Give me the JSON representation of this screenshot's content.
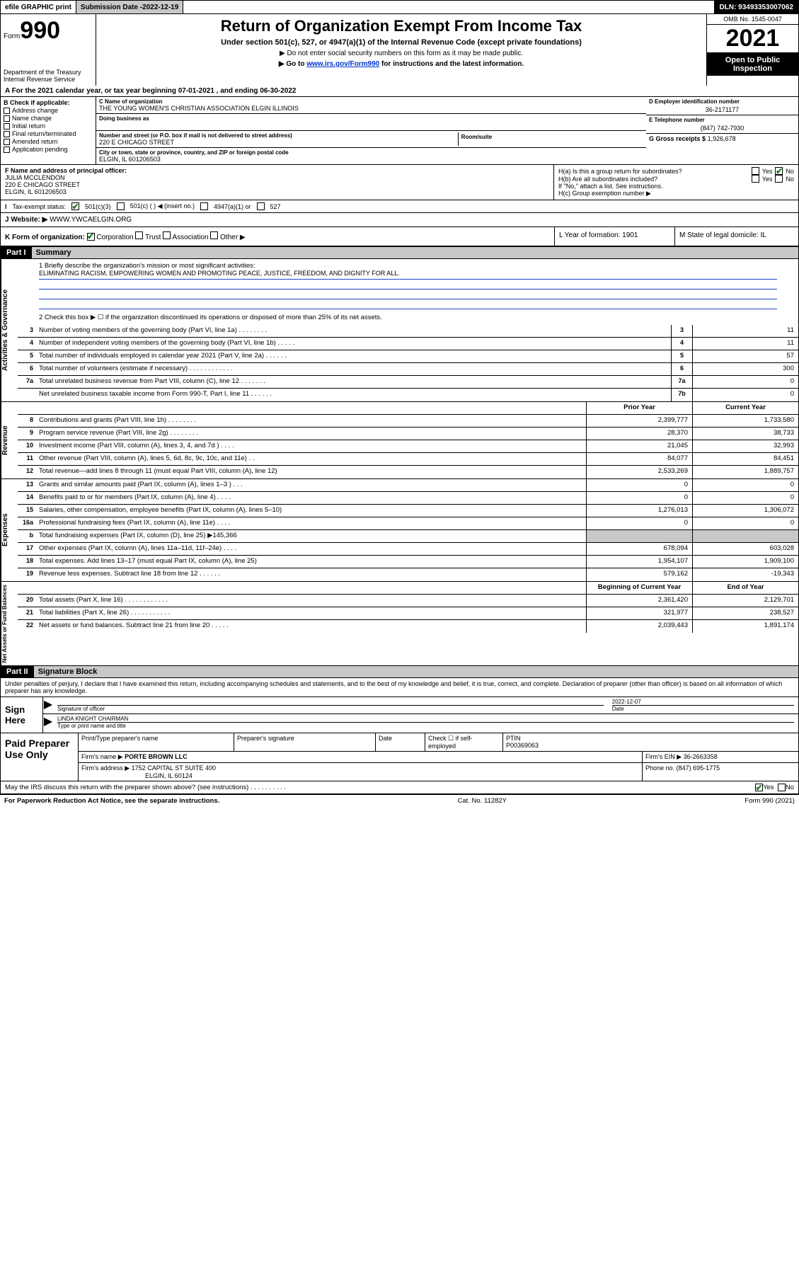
{
  "topbar": {
    "efile": "efile GRAPHIC print",
    "sub_label": "Submission Date - ",
    "sub_date": "2022-12-19",
    "dln": "DLN: 93493353007062"
  },
  "header": {
    "form": "Form",
    "form_num": "990",
    "title": "Return of Organization Exempt From Income Tax",
    "sub": "Under section 501(c), 527, or 4947(a)(1) of the Internal Revenue Code (except private foundations)",
    "note1": "▶ Do not enter social security numbers on this form as it may be made public.",
    "note2_a": "▶ Go to ",
    "note2_link": "www.irs.gov/Form990",
    "note2_b": " for instructions and the latest information.",
    "dept": "Department of the Treasury\nInternal Revenue Service",
    "omb": "OMB No. 1545-0047",
    "year": "2021",
    "open": "Open to Public Inspection"
  },
  "rowA": "A For the 2021 calendar year, or tax year beginning 07-01-2021   , and ending 06-30-2022",
  "colB": {
    "label": "B Check if applicable:",
    "items": [
      "Address change",
      "Name change",
      "Initial return",
      "Final return/terminated",
      "Amended return",
      "Application pending"
    ]
  },
  "colC": {
    "name_label": "C Name of organization",
    "name": "THE YOUNG WOMEN'S CHRISTIAN ASSOCIATION ELGIN ILLINOIS",
    "dba_label": "Doing business as",
    "addr_label": "Number and street (or P.O. box if mail is not delivered to street address)",
    "addr": "220 E CHICAGO STREET",
    "room_label": "Room/suite",
    "city_label": "City or town, state or province, country, and ZIP or foreign postal code",
    "city": "ELGIN, IL  601206503"
  },
  "colDE": {
    "d_label": "D Employer identification number",
    "ein": "36-2171177",
    "e_label": "E Telephone number",
    "phone": "(847) 742-7930",
    "g_label": "G Gross receipts $",
    "gross": "1,926,678"
  },
  "rowF": {
    "label": "F Name and address of principal officer:",
    "name": "JULIA MCCLENDON",
    "addr1": "220 E CHICAGO STREET",
    "addr2": "ELGIN, IL  601206503",
    "ha": "H(a)  Is this a group return for subordinates?",
    "hb": "H(b)  Are all subordinates included?",
    "hnote": "If \"No,\" attach a list. See instructions.",
    "hc": "H(c)  Group exemption number ▶",
    "yes": "Yes",
    "no": "No"
  },
  "rowI": {
    "label": "Tax-exempt status:",
    "opts": [
      "501(c)(3)",
      "501(c) (  ) ◀ (insert no.)",
      "4947(a)(1) or",
      "527"
    ]
  },
  "rowJ": {
    "label": "Website: ▶",
    "val": "WWW.YWCAELGIN.ORG"
  },
  "rowK": {
    "label": "K Form of organization:",
    "opts": [
      "Corporation",
      "Trust",
      "Association",
      "Other ▶"
    ],
    "l": "L Year of formation: 1901",
    "m": "M State of legal domicile: IL"
  },
  "part1": {
    "hdr": "Part I",
    "title": "Summary"
  },
  "mission": {
    "q": "1  Briefly describe the organization's mission or most significant activities:",
    "text": "ELIMINATING RACISM, EMPOWERING WOMEN AND PROMOTING PEACE, JUSTICE, FREEDOM, AND DIGNITY FOR ALL."
  },
  "line2": "2   Check this box ▶ ☐  if the organization discontinued its operations or disposed of more than 25% of its net assets.",
  "gov_rows": [
    {
      "n": "3",
      "t": "Number of voting members of the governing body (Part VI, line 1a)  .   .   .   .   .   .   .   .",
      "c": "3",
      "v": "11"
    },
    {
      "n": "4",
      "t": "Number of independent voting members of the governing body (Part VI, line 1b)  .   .   .   .   .",
      "c": "4",
      "v": "11"
    },
    {
      "n": "5",
      "t": "Total number of individuals employed in calendar year 2021 (Part V, line 2a)  .   .   .   .   .   .",
      "c": "5",
      "v": "57"
    },
    {
      "n": "6",
      "t": "Total number of volunteers (estimate if necessary)  .   .   .   .   .   .   .   .   .   .   .   .",
      "c": "6",
      "v": "300"
    },
    {
      "n": "7a",
      "t": "Total unrelated business revenue from Part VIII, column (C), line 12  .   .   .   .   .   .   .",
      "c": "7a",
      "v": "0"
    },
    {
      "n": "",
      "t": "Net unrelated business taxable income from Form 990-T, Part I, line 11  .   .   .   .   .   .",
      "c": "7b",
      "v": "0"
    }
  ],
  "col_hdrs": {
    "prior": "Prior Year",
    "current": "Current Year"
  },
  "rev_rows": [
    {
      "n": "8",
      "t": "Contributions and grants (Part VIII, line 1h)   .   .   .   .   .   .   .   .",
      "p": "2,399,777",
      "c": "1,733,580"
    },
    {
      "n": "9",
      "t": "Program service revenue (Part VIII, line 2g)   .   .   .   .   .   .   .   .",
      "p": "28,370",
      "c": "38,733"
    },
    {
      "n": "10",
      "t": "Investment income (Part VIII, column (A), lines 3, 4, and 7d )   .   .   .   .",
      "p": "21,045",
      "c": "32,993"
    },
    {
      "n": "11",
      "t": "Other revenue (Part VIII, column (A), lines 5, 6d, 8c, 9c, 10c, and 11e)   .   .",
      "p": "84,077",
      "c": "84,451"
    },
    {
      "n": "12",
      "t": "Total revenue—add lines 8 through 11 (must equal Part VIII, column (A), line 12)",
      "p": "2,533,269",
      "c": "1,889,757"
    }
  ],
  "exp_rows": [
    {
      "n": "13",
      "t": "Grants and similar amounts paid (Part IX, column (A), lines 1–3 )   .   .   .",
      "p": "0",
      "c": "0"
    },
    {
      "n": "14",
      "t": "Benefits paid to or for members (Part IX, column (A), line 4)   .   .   .   .",
      "p": "0",
      "c": "0"
    },
    {
      "n": "15",
      "t": "Salaries, other compensation, employee benefits (Part IX, column (A), lines 5–10)",
      "p": "1,276,013",
      "c": "1,306,072"
    },
    {
      "n": "16a",
      "t": "Professional fundraising fees (Part IX, column (A), line 11e)   .   .   .   .",
      "p": "0",
      "c": "0"
    },
    {
      "n": "b",
      "t": "Total fundraising expenses (Part IX, column (D), line 25) ▶145,366",
      "p": "grey",
      "c": "grey"
    },
    {
      "n": "17",
      "t": "Other expenses (Part IX, column (A), lines 11a–11d, 11f–24e)   .   .   .   .",
      "p": "678,094",
      "c": "603,028"
    },
    {
      "n": "18",
      "t": "Total expenses. Add lines 13–17 (must equal Part IX, column (A), line 25)",
      "p": "1,954,107",
      "c": "1,909,100"
    },
    {
      "n": "19",
      "t": "Revenue less expenses. Subtract line 18 from line 12   .   .   .   .   .   .",
      "p": "579,162",
      "c": "-19,343"
    }
  ],
  "net_hdrs": {
    "begin": "Beginning of Current Year",
    "end": "End of Year"
  },
  "net_rows": [
    {
      "n": "20",
      "t": "Total assets (Part X, line 16)   .   .   .   .   .   .   .   .   .   .   .   .",
      "p": "2,361,420",
      "c": "2,129,701"
    },
    {
      "n": "21",
      "t": "Total liabilities (Part X, line 26)   .   .   .   .   .   .   .   .   .   .   .",
      "p": "321,977",
      "c": "238,527"
    },
    {
      "n": "22",
      "t": "Net assets or fund balances. Subtract line 21 from line 20   .   .   .   .   .",
      "p": "2,039,443",
      "c": "1,891,174"
    }
  ],
  "part2": {
    "hdr": "Part II",
    "title": "Signature Block"
  },
  "sig": {
    "intro": "Under penalties of perjury, I declare that I have examined this return, including accompanying schedules and statements, and to the best of my knowledge and belief, it is true, correct, and complete. Declaration of preparer (other than officer) is based on all information of which preparer has any knowledge.",
    "sign_here": "Sign Here",
    "sig_of": "Signature of officer",
    "date_lbl": "Date",
    "date": "2022-12-07",
    "name": "LINDA KNIGHT CHAIRMAN",
    "name_lbl": "Type or print name and title"
  },
  "prep": {
    "label": "Paid Preparer Use Only",
    "r1": {
      "a": "Print/Type preparer's name",
      "b": "Preparer's signature",
      "c": "Date",
      "d": "Check ☐  if self-employed",
      "e": "PTIN",
      "ptin": "P00369063"
    },
    "r2": {
      "a": "Firm's name     ▶",
      "firm": "PORTE BROWN LLC",
      "b": "Firm's EIN ▶",
      "ein": "36-2663358"
    },
    "r3": {
      "a": "Firm's address ▶",
      "addr": "1752 CAPITAL ST SUITE 400",
      "city": "ELGIN, IL  60124",
      "b": "Phone no.",
      "ph": "(847) 695-1775"
    }
  },
  "discuss": "May the IRS discuss this return with the preparer shown above? (see instructions)   .   .   .   .   .   .   .   .   .   .",
  "footer": {
    "l": "For Paperwork Reduction Act Notice, see the separate instructions.",
    "m": "Cat. No. 11282Y",
    "r": "Form 990 (2021)"
  },
  "sidelabels": {
    "gov": "Activities & Governance",
    "rev": "Revenue",
    "exp": "Expenses",
    "net": "Net Assets or Fund Balances"
  }
}
